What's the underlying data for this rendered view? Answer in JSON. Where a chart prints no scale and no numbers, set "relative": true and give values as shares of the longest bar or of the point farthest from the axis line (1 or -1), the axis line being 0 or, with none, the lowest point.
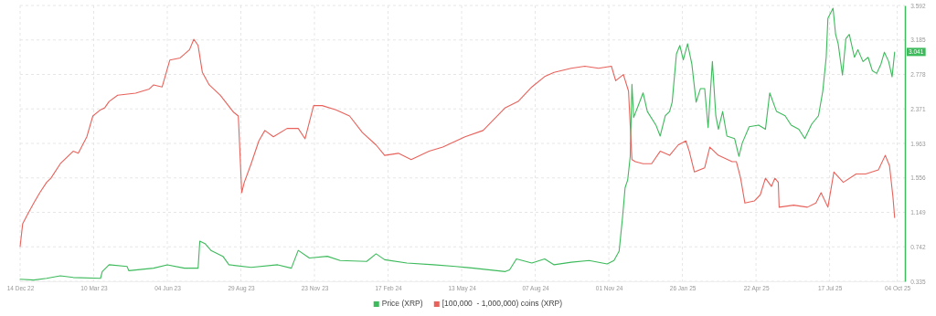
{
  "chart_data": [
    {
      "type": "line",
      "grid": true,
      "legend": "bottom",
      "marker": "none",
      "line_style": "solid",
      "xlim": [
        "2022-12-14",
        "2025-10-13"
      ],
      "xticks": [
        {
          "value": "2022-12-14",
          "label": "14 Dec 22"
        },
        {
          "value": "2023-03-10",
          "label": "10 Mar 23"
        },
        {
          "value": "2023-06-04",
          "label": "04 Jun 23"
        },
        {
          "value": "2023-08-29",
          "label": "29 Aug 23"
        },
        {
          "value": "2023-11-23",
          "label": "23 Nov 23"
        },
        {
          "value": "2024-02-17",
          "label": "17 Feb 24"
        },
        {
          "value": "2024-05-13",
          "label": "13 May 24"
        },
        {
          "value": "2024-08-07",
          "label": "07 Aug 24"
        },
        {
          "value": "2024-11-01",
          "label": "01 Nov 24"
        },
        {
          "value": "2025-01-26",
          "label": "26 Jan 25"
        },
        {
          "value": "2025-04-22",
          "label": "22 Apr 25"
        },
        {
          "value": "2025-07-17",
          "label": "17 Jul 25"
        },
        {
          "value": "2025-10-04",
          "label": "04 Oct 25"
        }
      ],
      "ylim": [
        0.335,
        3.592
      ],
      "yticks": [
        0.335,
        0.742,
        1.149,
        1.556,
        1.963,
        2.371,
        2.778,
        3.185,
        3.592
      ],
      "annotations": [
        {
          "text": "3.041",
          "y": 3.041
        }
      ],
      "series": [
        {
          "name": "Price (XRP)",
          "color": "#3dba5b",
          "x": [
            "2022-12-14",
            "2022-12-30",
            "2023-01-14",
            "2023-01-30",
            "2023-02-14",
            "2023-03-18",
            "2023-03-20",
            "2023-03-28",
            "2023-04-18",
            "2023-04-20",
            "2023-05-19",
            "2023-06-04",
            "2023-06-24",
            "2023-07-10",
            "2023-07-12",
            "2023-07-18",
            "2023-07-25",
            "2023-08-08",
            "2023-08-15",
            "2023-09-10",
            "2023-10-11",
            "2023-10-27",
            "2023-11-04",
            "2023-11-17",
            "2023-12-08",
            "2023-12-23",
            "2024-01-23",
            "2024-02-03",
            "2024-02-13",
            "2024-03-10",
            "2024-04-10",
            "2024-05-06",
            "2024-05-27",
            "2024-07-03",
            "2024-07-08",
            "2024-07-16",
            "2024-08-03",
            "2024-08-18",
            "2024-08-29",
            "2024-09-18",
            "2024-10-09",
            "2024-10-30",
            "2024-11-07",
            "2024-11-13",
            "2024-11-17",
            "2024-11-20",
            "2024-11-23",
            "2024-11-26",
            "2024-11-28",
            "2024-11-30",
            "2024-12-05",
            "2024-12-11",
            "2024-12-16",
            "2024-12-26",
            "2024-12-31",
            "2025-01-06",
            "2025-01-11",
            "2025-01-14",
            "2025-01-19",
            "2025-01-23",
            "2025-01-27",
            "2025-02-01",
            "2025-02-06",
            "2025-02-11",
            "2025-02-16",
            "2025-02-21",
            "2025-02-25",
            "2025-03-02",
            "2025-03-06",
            "2025-03-09",
            "2025-03-14",
            "2025-03-19",
            "2025-03-28",
            "2025-04-02",
            "2025-04-06",
            "2025-04-14",
            "2025-04-25",
            "2025-05-03",
            "2025-05-08",
            "2025-05-16",
            "2025-05-26",
            "2025-06-02",
            "2025-06-11",
            "2025-06-18",
            "2025-06-26",
            "2025-07-04",
            "2025-07-09",
            "2025-07-13",
            "2025-07-15",
            "2025-07-19",
            "2025-07-21",
            "2025-07-24",
            "2025-07-27",
            "2025-08-01",
            "2025-08-05",
            "2025-08-09",
            "2025-08-15",
            "2025-08-19",
            "2025-08-25",
            "2025-08-31",
            "2025-09-05",
            "2025-09-10",
            "2025-09-15",
            "2025-09-19",
            "2025-09-24",
            "2025-09-28",
            "2025-10-01"
          ],
          "values": [
            0.36,
            0.35,
            0.37,
            0.4,
            0.38,
            0.37,
            0.45,
            0.53,
            0.51,
            0.46,
            0.49,
            0.53,
            0.49,
            0.49,
            0.81,
            0.78,
            0.7,
            0.63,
            0.53,
            0.5,
            0.53,
            0.49,
            0.7,
            0.61,
            0.63,
            0.58,
            0.57,
            0.66,
            0.59,
            0.55,
            0.53,
            0.51,
            0.49,
            0.45,
            0.47,
            0.6,
            0.55,
            0.6,
            0.53,
            0.56,
            0.58,
            0.54,
            0.58,
            0.69,
            1.09,
            1.44,
            1.53,
            1.81,
            2.66,
            2.27,
            2.4,
            2.56,
            2.34,
            2.18,
            2.05,
            2.29,
            2.34,
            2.45,
            3.02,
            3.12,
            2.95,
            3.14,
            2.9,
            2.45,
            2.61,
            2.61,
            2.15,
            2.93,
            2.29,
            2.13,
            2.34,
            2.05,
            2.02,
            1.81,
            1.97,
            2.16,
            2.18,
            2.13,
            2.56,
            2.34,
            2.29,
            2.18,
            2.13,
            2.02,
            2.19,
            2.29,
            2.58,
            2.98,
            3.44,
            3.52,
            3.56,
            3.25,
            3.14,
            2.77,
            3.2,
            3.25,
            2.98,
            3.07,
            2.93,
            2.98,
            2.82,
            2.79,
            2.9,
            3.04,
            2.93,
            2.75,
            3.041
          ]
        }
      ]
    },
    {
      "type": "line",
      "relative": true,
      "legend": "bottom",
      "marker": "none",
      "line_style": "solid",
      "xlim": [
        "2022-12-14",
        "2025-10-13"
      ],
      "series": [
        {
          "name": "[100,000  - 1,000,000) coins (XRP)",
          "color": "#e8625b",
          "x": [
            "2022-12-14",
            "2022-12-17",
            "2022-12-22",
            "2022-12-30",
            "2023-01-06",
            "2023-01-14",
            "2023-01-19",
            "2023-01-30",
            "2023-02-14",
            "2023-02-20",
            "2023-03-02",
            "2023-03-09",
            "2023-03-18",
            "2023-03-23",
            "2023-03-28",
            "2023-04-07",
            "2023-04-28",
            "2023-05-14",
            "2023-05-19",
            "2023-05-29",
            "2023-06-07",
            "2023-06-19",
            "2023-06-30",
            "2023-07-05",
            "2023-07-10",
            "2023-07-15",
            "2023-07-23",
            "2023-08-05",
            "2023-08-20",
            "2023-08-26",
            "2023-08-30",
            "2023-09-02",
            "2023-09-10",
            "2023-09-19",
            "2023-09-26",
            "2023-10-06",
            "2023-10-22",
            "2023-11-04",
            "2023-11-12",
            "2023-11-22",
            "2023-12-02",
            "2023-12-18",
            "2024-01-03",
            "2024-01-18",
            "2024-02-03",
            "2024-02-13",
            "2024-02-29",
            "2024-03-15",
            "2024-04-05",
            "2024-04-21",
            "2024-05-17",
            "2024-06-07",
            "2024-07-03",
            "2024-07-18",
            "2024-08-03",
            "2024-08-18",
            "2024-08-29",
            "2024-09-18",
            "2024-10-04",
            "2024-10-20",
            "2024-11-04",
            "2024-11-09",
            "2024-11-18",
            "2024-11-24",
            "2024-11-28",
            "2024-12-02",
            "2024-12-11",
            "2024-12-21",
            "2024-12-31",
            "2025-01-11",
            "2025-01-21",
            "2025-01-30",
            "2025-02-03",
            "2025-02-09",
            "2025-02-21",
            "2025-02-27",
            "2025-03-09",
            "2025-03-25",
            "2025-03-30",
            "2025-04-04",
            "2025-04-09",
            "2025-04-20",
            "2025-04-27",
            "2025-05-03",
            "2025-05-10",
            "2025-05-14",
            "2025-05-18",
            "2025-05-19",
            "2025-06-05",
            "2025-06-21",
            "2025-07-01",
            "2025-07-07",
            "2025-07-15",
            "2025-07-22",
            "2025-08-02",
            "2025-08-17",
            "2025-08-28",
            "2025-09-12",
            "2025-09-20",
            "2025-09-25",
            "2025-09-29",
            "2025-10-01"
          ],
          "values": [
            0,
            0.11,
            0.15,
            0.21,
            0.26,
            0.31,
            0.33,
            0.4,
            0.46,
            0.45,
            0.53,
            0.63,
            0.66,
            0.67,
            0.7,
            0.73,
            0.74,
            0.76,
            0.78,
            0.77,
            0.9,
            0.91,
            0.95,
            1,
            0.97,
            0.84,
            0.78,
            0.73,
            0.65,
            0.63,
            0.26,
            0.31,
            0.4,
            0.51,
            0.56,
            0.53,
            0.57,
            0.57,
            0.52,
            0.68,
            0.68,
            0.66,
            0.63,
            0.55,
            0.49,
            0.44,
            0.45,
            0.42,
            0.46,
            0.48,
            0.53,
            0.56,
            0.67,
            0.7,
            0.77,
            0.82,
            0.84,
            0.86,
            0.87,
            0.86,
            0.87,
            0.8,
            0.83,
            0.75,
            0.42,
            0.41,
            0.4,
            0.4,
            0.46,
            0.44,
            0.49,
            0.51,
            0.46,
            0.36,
            0.38,
            0.48,
            0.44,
            0.41,
            0.41,
            0.33,
            0.21,
            0.22,
            0.25,
            0.33,
            0.29,
            0.33,
            0.31,
            0.19,
            0.2,
            0.19,
            0.21,
            0.26,
            0.19,
            0.36,
            0.31,
            0.35,
            0.35,
            0.37,
            0.44,
            0.39,
            0.24,
            0.14
          ]
        }
      ]
    }
  ]
}
